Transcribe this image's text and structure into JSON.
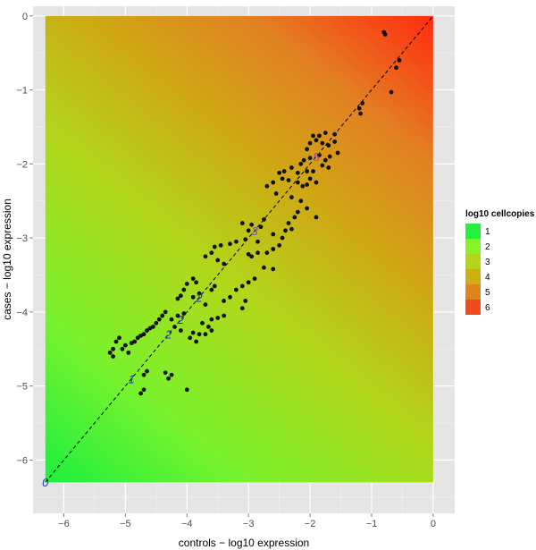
{
  "chart_data": {
    "type": "scatter",
    "xlabel": "controls − log10 expression",
    "ylabel": "cases − log10 expression",
    "xlim": [
      -6.5,
      0.35
    ],
    "ylim": [
      -6.72,
      0.13
    ],
    "x_ticks": [
      -6,
      -5,
      -4,
      -3,
      -2,
      -1,
      0
    ],
    "y_ticks": [
      -6,
      -5,
      -4,
      -3,
      -2,
      -1,
      0
    ],
    "tick_labels": [
      "−6",
      "−5",
      "−4",
      "−3",
      "−2",
      "−1",
      "0"
    ],
    "fill_extent": {
      "x": [
        -6.3,
        0
      ],
      "y": [
        -6.3,
        0
      ]
    },
    "grid": true,
    "diagonal": {
      "from": [
        -6.3,
        -6.3
      ],
      "to": [
        0,
        0
      ],
      "style": "dashed"
    },
    "legend": {
      "title": "log10 cellcopies",
      "placement": "right",
      "entries": [
        {
          "label": "1",
          "color": "#22f23c"
        },
        {
          "label": "2",
          "color": "#86f32a"
        },
        {
          "label": "3",
          "color": "#b4d418"
        },
        {
          "label": "4",
          "color": "#cfae12"
        },
        {
          "label": "5",
          "color": "#e08420"
        },
        {
          "label": "6",
          "color": "#f04a1e"
        }
      ]
    },
    "annotations": [
      {
        "text": "0",
        "x": -6.3,
        "y": -6.3,
        "color": "#2233cc"
      },
      {
        "text": "1",
        "x": -4.9,
        "y": -4.9,
        "color": "#2233cc"
      },
      {
        "text": "2",
        "x": -4.3,
        "y": -4.3,
        "color": "#2233cc"
      },
      {
        "text": "2",
        "x": -4.1,
        "y": -4.1,
        "color": "#2233cc"
      },
      {
        "text": "2",
        "x": -3.8,
        "y": -3.8,
        "color": "#2233cc"
      },
      {
        "text": "3",
        "x": -2.9,
        "y": -2.9,
        "color": "#7a44cc"
      },
      {
        "text": "5",
        "x": -1.9,
        "y": -1.9,
        "color": "#aa44aa"
      }
    ],
    "points": [
      [
        -0.8,
        -0.22
      ],
      [
        -0.78,
        -0.25
      ],
      [
        -0.55,
        -0.6
      ],
      [
        -0.6,
        -0.7
      ],
      [
        -0.68,
        -1.03
      ],
      [
        -1.15,
        -1.18
      ],
      [
        -1.2,
        -1.25
      ],
      [
        -1.18,
        -1.32
      ],
      [
        -1.6,
        -1.6
      ],
      [
        -1.75,
        -1.58
      ],
      [
        -1.85,
        -1.62
      ],
      [
        -1.95,
        -1.62
      ],
      [
        -1.6,
        -1.7
      ],
      [
        -1.7,
        -1.75
      ],
      [
        -1.8,
        -1.72
      ],
      [
        -1.9,
        -1.68
      ],
      [
        -2.0,
        -1.72
      ],
      [
        -2.05,
        -1.8
      ],
      [
        -1.55,
        -1.85
      ],
      [
        -1.68,
        -1.9
      ],
      [
        -1.75,
        -1.95
      ],
      [
        -1.85,
        -1.88
      ],
      [
        -2.0,
        -1.92
      ],
      [
        -2.1,
        -1.95
      ],
      [
        -1.8,
        -2.02
      ],
      [
        -1.7,
        -2.05
      ],
      [
        -1.95,
        -2.1
      ],
      [
        -2.05,
        -2.1
      ],
      [
        -2.15,
        -2.0
      ],
      [
        -2.2,
        -2.12
      ],
      [
        -2.3,
        -2.05
      ],
      [
        -2.42,
        -2.1
      ],
      [
        -2.5,
        -2.12
      ],
      [
        -2.0,
        -2.2
      ],
      [
        -1.9,
        -2.25
      ],
      [
        -2.05,
        -2.28
      ],
      [
        -2.12,
        -2.3
      ],
      [
        -2.2,
        -2.25
      ],
      [
        -2.35,
        -2.22
      ],
      [
        -2.45,
        -2.2
      ],
      [
        -2.6,
        -2.25
      ],
      [
        -2.7,
        -2.3
      ],
      [
        -2.55,
        -2.4
      ],
      [
        -2.3,
        -2.45
      ],
      [
        -2.15,
        -2.5
      ],
      [
        -2.05,
        -2.6
      ],
      [
        -2.2,
        -2.65
      ],
      [
        -2.25,
        -2.72
      ],
      [
        -1.9,
        -2.72
      ],
      [
        -2.35,
        -2.8
      ],
      [
        -2.4,
        -2.9
      ],
      [
        -2.3,
        -2.88
      ],
      [
        -2.75,
        -2.75
      ],
      [
        -2.8,
        -2.85
      ],
      [
        -2.95,
        -2.82
      ],
      [
        -3.1,
        -2.8
      ],
      [
        -3.0,
        -2.9
      ],
      [
        -2.6,
        -2.95
      ],
      [
        -2.45,
        -3.0
      ],
      [
        -2.5,
        -3.1
      ],
      [
        -2.6,
        -3.15
      ],
      [
        -2.7,
        -3.2
      ],
      [
        -2.85,
        -3.05
      ],
      [
        -3.05,
        -3.02
      ],
      [
        -3.2,
        -3.05
      ],
      [
        -3.3,
        -3.08
      ],
      [
        -3.45,
        -3.1
      ],
      [
        -3.55,
        -3.12
      ],
      [
        -3.6,
        -3.2
      ],
      [
        -3.7,
        -3.25
      ],
      [
        -3.5,
        -3.3
      ],
      [
        -3.4,
        -3.35
      ],
      [
        -2.85,
        -3.2
      ],
      [
        -2.95,
        -3.25
      ],
      [
        -3.0,
        -3.22
      ],
      [
        -2.75,
        -3.4
      ],
      [
        -2.6,
        -3.42
      ],
      [
        -2.9,
        -3.55
      ],
      [
        -3.0,
        -3.6
      ],
      [
        -3.1,
        -3.65
      ],
      [
        -3.2,
        -3.7
      ],
      [
        -3.3,
        -3.8
      ],
      [
        -3.4,
        -3.85
      ],
      [
        -3.55,
        -3.65
      ],
      [
        -3.6,
        -3.7
      ],
      [
        -3.7,
        -3.9
      ],
      [
        -3.8,
        -3.75
      ],
      [
        -3.85,
        -3.6
      ],
      [
        -3.9,
        -3.55
      ],
      [
        -4.0,
        -3.62
      ],
      [
        -4.05,
        -3.7
      ],
      [
        -4.1,
        -3.78
      ],
      [
        -4.15,
        -3.82
      ],
      [
        -3.9,
        -3.8
      ],
      [
        -3.05,
        -3.85
      ],
      [
        -3.1,
        -3.95
      ],
      [
        -4.05,
        -4.02
      ],
      [
        -4.15,
        -4.05
      ],
      [
        -4.25,
        -4.1
      ],
      [
        -4.35,
        -4.0
      ],
      [
        -4.4,
        -4.05
      ],
      [
        -4.45,
        -4.1
      ],
      [
        -4.5,
        -4.15
      ],
      [
        -4.55,
        -4.2
      ],
      [
        -4.6,
        -4.22
      ],
      [
        -4.65,
        -4.25
      ],
      [
        -4.7,
        -4.3
      ],
      [
        -4.75,
        -4.32
      ],
      [
        -4.8,
        -4.35
      ],
      [
        -4.85,
        -4.4
      ],
      [
        -4.9,
        -4.42
      ],
      [
        -4.2,
        -4.2
      ],
      [
        -4.1,
        -4.25
      ],
      [
        -3.75,
        -4.15
      ],
      [
        -3.65,
        -4.2
      ],
      [
        -3.6,
        -4.25
      ],
      [
        -3.7,
        -4.3
      ],
      [
        -3.8,
        -4.3
      ],
      [
        -3.9,
        -4.28
      ],
      [
        -3.95,
        -4.35
      ],
      [
        -3.85,
        -4.4
      ],
      [
        -3.4,
        -4.05
      ],
      [
        -3.5,
        -4.08
      ],
      [
        -3.6,
        -4.1
      ],
      [
        -5.0,
        -4.45
      ],
      [
        -5.05,
        -4.5
      ],
      [
        -5.1,
        -4.35
      ],
      [
        -5.15,
        -4.4
      ],
      [
        -5.2,
        -4.5
      ],
      [
        -5.25,
        -4.55
      ],
      [
        -5.2,
        -4.6
      ],
      [
        -4.95,
        -4.55
      ],
      [
        -4.65,
        -4.8
      ],
      [
        -4.7,
        -4.85
      ],
      [
        -4.35,
        -4.82
      ],
      [
        -4.3,
        -4.9
      ],
      [
        -4.25,
        -4.85
      ],
      [
        -4.0,
        -5.05
      ],
      [
        -4.7,
        -5.05
      ],
      [
        -4.75,
        -5.1
      ]
    ]
  }
}
